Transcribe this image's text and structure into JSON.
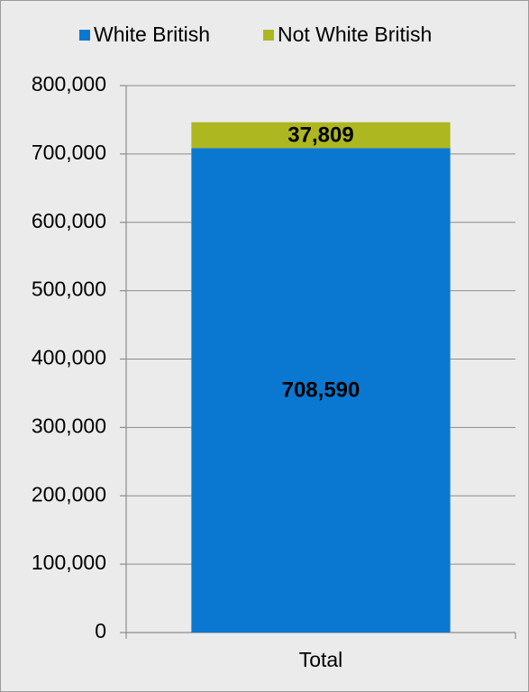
{
  "chart_data": {
    "type": "stacked-bar",
    "categories": [
      "Total"
    ],
    "series": [
      {
        "name": "White British",
        "color": "#0a78d0",
        "values": [
          708590
        ],
        "value_labels": [
          "708,590"
        ]
      },
      {
        "name": "Not White British",
        "color": "#adb820",
        "values": [
          37809
        ],
        "value_labels": [
          "37,809"
        ]
      }
    ],
    "ylim": [
      0,
      800000
    ],
    "yticks": [
      0,
      {
        "value": 100000,
        "label": "100,000"
      },
      {
        "value": 200000,
        "label": "200,000"
      },
      {
        "value": 300000,
        "label": "300,000"
      },
      {
        "value": 400000,
        "label": "400,000"
      },
      {
        "value": 500000,
        "label": "500,000"
      },
      {
        "value": 600000,
        "label": "600,000"
      },
      {
        "value": 700000,
        "label": "700,000"
      },
      {
        "value": 800000,
        "label": "800,000"
      }
    ],
    "grid": true
  }
}
